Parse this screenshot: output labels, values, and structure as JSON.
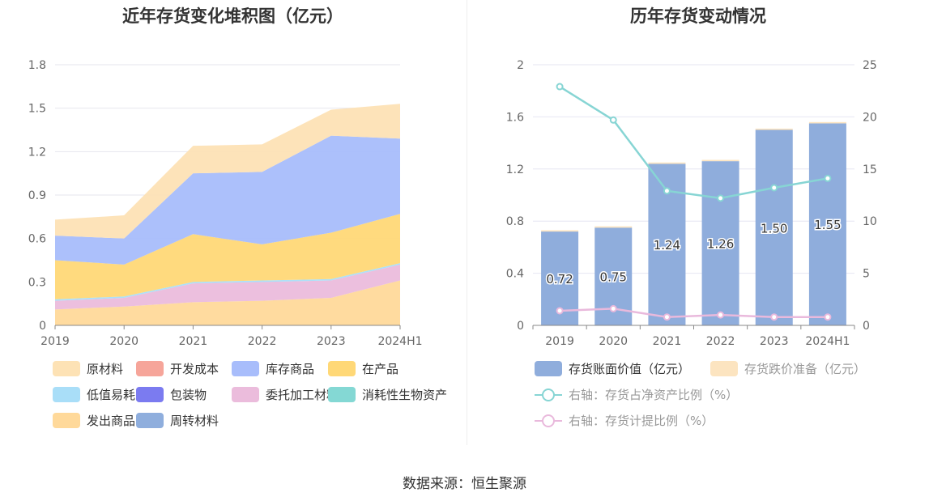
{
  "source": "数据来源：恒生聚源",
  "chart_data": [
    {
      "type": "area",
      "stacked": true,
      "title": "近年存货变化堆积图（亿元）",
      "categories": [
        "2019",
        "2020",
        "2021",
        "2022",
        "2023",
        "2024H1"
      ],
      "y_ticks": [
        "0",
        "0.3",
        "0.6",
        "0.9",
        "1.2",
        "1.5",
        "1.8"
      ],
      "ylim": [
        0,
        1.8
      ],
      "grid": true,
      "legend_position": "bottom",
      "series": [
        {
          "name": "发出商品",
          "color": "#FFD99A",
          "values": [
            0.11,
            0.13,
            0.16,
            0.17,
            0.19,
            0.31
          ]
        },
        {
          "name": "委托加工材料",
          "color": "#EBBCDC",
          "values": [
            0.06,
            0.06,
            0.13,
            0.13,
            0.12,
            0.11
          ]
        },
        {
          "name": "包装物",
          "color": "#7B7BF0",
          "values": [
            0.0,
            0.0,
            0.0,
            0.0,
            0.0,
            0.0
          ]
        },
        {
          "name": "低值易耗品",
          "color": "#A9DEF8",
          "values": [
            0.01,
            0.01,
            0.01,
            0.01,
            0.01,
            0.01
          ]
        },
        {
          "name": "消耗性生物资产",
          "color": "#84D8D4",
          "values": [
            0.0,
            0.0,
            0.0,
            0.0,
            0.0,
            0.0
          ]
        },
        {
          "name": "周转材料",
          "color": "#8FAEDD",
          "values": [
            0.0,
            0.0,
            0.0,
            0.0,
            0.0,
            0.0
          ]
        },
        {
          "name": "开发成本",
          "color": "#F6A59A",
          "values": [
            0.0,
            0.0,
            0.0,
            0.0,
            0.0,
            0.0
          ]
        },
        {
          "name": "在产品",
          "color": "#FFD877",
          "values": [
            0.27,
            0.22,
            0.33,
            0.25,
            0.32,
            0.34
          ]
        },
        {
          "name": "库存商品",
          "color": "#A8BDFB",
          "values": [
            0.17,
            0.18,
            0.42,
            0.5,
            0.67,
            0.52
          ]
        },
        {
          "name": "原材料",
          "color": "#FDE2B5",
          "values": [
            0.11,
            0.16,
            0.19,
            0.19,
            0.18,
            0.24
          ]
        }
      ],
      "legend_order": [
        "原材料",
        "开发成本",
        "库存商品",
        "在产品",
        "低值易耗品",
        "包装物",
        "委托加工材料",
        "消耗性生物资产",
        "发出商品",
        "周转材料"
      ]
    },
    {
      "type": "bar",
      "title": "历年存货变动情况",
      "categories": [
        "2019",
        "2020",
        "2021",
        "2022",
        "2023",
        "2024H1"
      ],
      "y_left_ticks": [
        "0",
        "0.4",
        "0.8",
        "1.2",
        "1.6",
        "2"
      ],
      "y_right_ticks": [
        "0",
        "5",
        "10",
        "15",
        "20",
        "25"
      ],
      "ylim_left": [
        0,
        2
      ],
      "ylim_right": [
        0,
        25
      ],
      "grid": true,
      "legend_position": "bottom",
      "series": [
        {
          "name": "存货账面价值（亿元）",
          "type": "bar",
          "axis": "left",
          "color": "#8FADDC",
          "values": [
            0.72,
            0.75,
            1.24,
            1.26,
            1.5,
            1.55
          ],
          "labels": [
            "0.72",
            "0.75",
            "1.24",
            "1.26",
            "1.50",
            "1.55"
          ]
        },
        {
          "name": "存货跌价准备（亿元）",
          "type": "bar",
          "axis": "left",
          "color": "#FCE4C0",
          "values": [
            0.01,
            0.01,
            0.01,
            0.01,
            0.01,
            0.01
          ]
        },
        {
          "name": "右轴：存货占净资产比例（%）",
          "type": "line",
          "axis": "right",
          "color": "#87D5D4",
          "values": [
            22.9,
            19.7,
            12.9,
            12.2,
            13.2,
            14.1
          ]
        },
        {
          "name": "右轴：存货计提比例（%）",
          "type": "line",
          "axis": "right",
          "color": "#E9B9DC",
          "values": [
            1.4,
            1.6,
            0.8,
            1.0,
            0.8,
            0.8
          ]
        }
      ]
    }
  ]
}
